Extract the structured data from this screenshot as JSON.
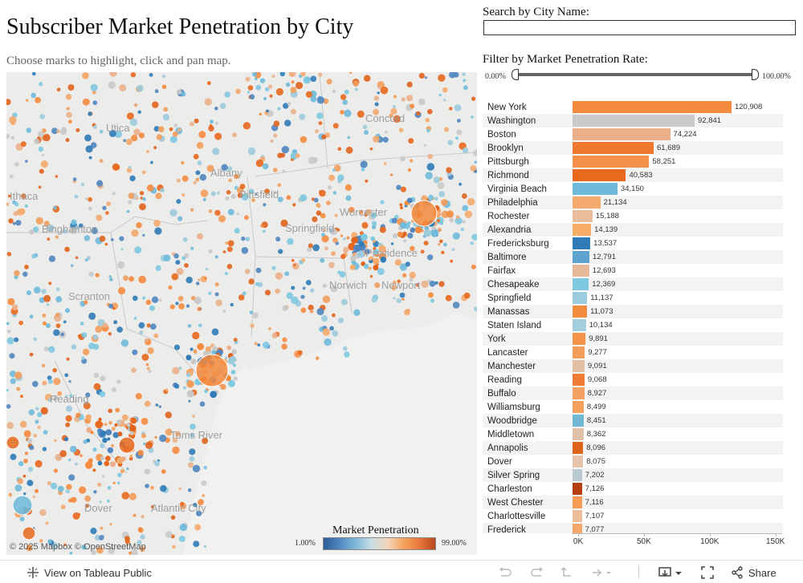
{
  "header": {
    "title": "Subscriber Market Penetration by City",
    "subtitle": "Choose marks to highlight, click and pan map."
  },
  "search": {
    "label": "Search by City Name:",
    "value": ""
  },
  "filter": {
    "label": "Filter by Market Penetration Rate:",
    "min_label": "0.00%",
    "max_label": "100.00%",
    "range": [
      0,
      100
    ]
  },
  "map": {
    "places": [
      "Utica",
      "Concord",
      "Albany",
      "Pittsfield",
      "Ithaca",
      "Binghamton",
      "Worcester",
      "Springfield",
      "Providence",
      "Scranton",
      "Norwich",
      "Newport",
      "Toms River",
      "Reading",
      "Dover",
      "Atlantic City"
    ],
    "attribution": "© 2025 Mapbox  © OpenStreetMap",
    "legend": {
      "title": "Market Penetration",
      "min_label": "1.00%",
      "max_label": "99.00%"
    }
  },
  "chart_data": {
    "type": "bar",
    "orientation": "horizontal",
    "categories": [
      "New York",
      "Washington",
      "Boston",
      "Brooklyn",
      "Pittsburgh",
      "Richmond",
      "Virginia Beach",
      "Philadelphia",
      "Rochester",
      "Alexandria",
      "Fredericksburg",
      "Baltimore",
      "Fairfax",
      "Chesapeake",
      "Springfield",
      "Manassas",
      "Staten Island",
      "York",
      "Lancaster",
      "Manchester",
      "Reading",
      "Buffalo",
      "Williamsburg",
      "Woodbridge",
      "Middletown",
      "Annapolis",
      "Dover",
      "Silver Spring",
      "Charleston",
      "West Chester",
      "Charlottesville",
      "Frederick"
    ],
    "values": [
      120908,
      92841,
      74224,
      61689,
      58251,
      40583,
      34150,
      21134,
      15188,
      14139,
      13537,
      12791,
      12693,
      12369,
      11137,
      11073,
      10134,
      9891,
      9277,
      9091,
      9068,
      8927,
      8499,
      8451,
      8362,
      8096,
      8075,
      7202,
      7126,
      7116,
      7107,
      7077
    ],
    "value_labels": [
      "120,908",
      "92,841",
      "74,224",
      "61,689",
      "58,251",
      "40,583",
      "34,150",
      "21,134",
      "15,188",
      "14,139",
      "13,537",
      "12,791",
      "12,693",
      "12,369",
      "11,137",
      "11,073",
      "10,134",
      "9,891",
      "9,277",
      "9,091",
      "9,068",
      "8,927",
      "8,499",
      "8,451",
      "8,362",
      "8,096",
      "8,075",
      "7,202",
      "7,126",
      "7,116",
      "7,107",
      "7,077"
    ],
    "colors": [
      "#f58b3e",
      "#c9c9c9",
      "#ebb089",
      "#f0782f",
      "#f5904b",
      "#e8691e",
      "#6fbadb",
      "#f5aa6e",
      "#e9bc9c",
      "#f6ad66",
      "#2f7cb8",
      "#5fa3cf",
      "#e6b999",
      "#7ec8e0",
      "#9ccbdd",
      "#f28d40",
      "#a3cfdc",
      "#f4934a",
      "#f39d5b",
      "#e3bfa6",
      "#ef7b35",
      "#f3a060",
      "#f6a05e",
      "#72b6d6",
      "#e0c0a8",
      "#e0631d",
      "#e8c4ad",
      "#b9c9d2",
      "#b4400f",
      "#f69c55",
      "#ecbd98",
      "#f3a76b"
    ],
    "x_ticks": [
      "0K",
      "50K",
      "100K",
      "150K"
    ],
    "xlim": [
      0,
      160000
    ]
  },
  "footer": {
    "view_label": "View on Tableau Public",
    "share_label": "Share"
  }
}
